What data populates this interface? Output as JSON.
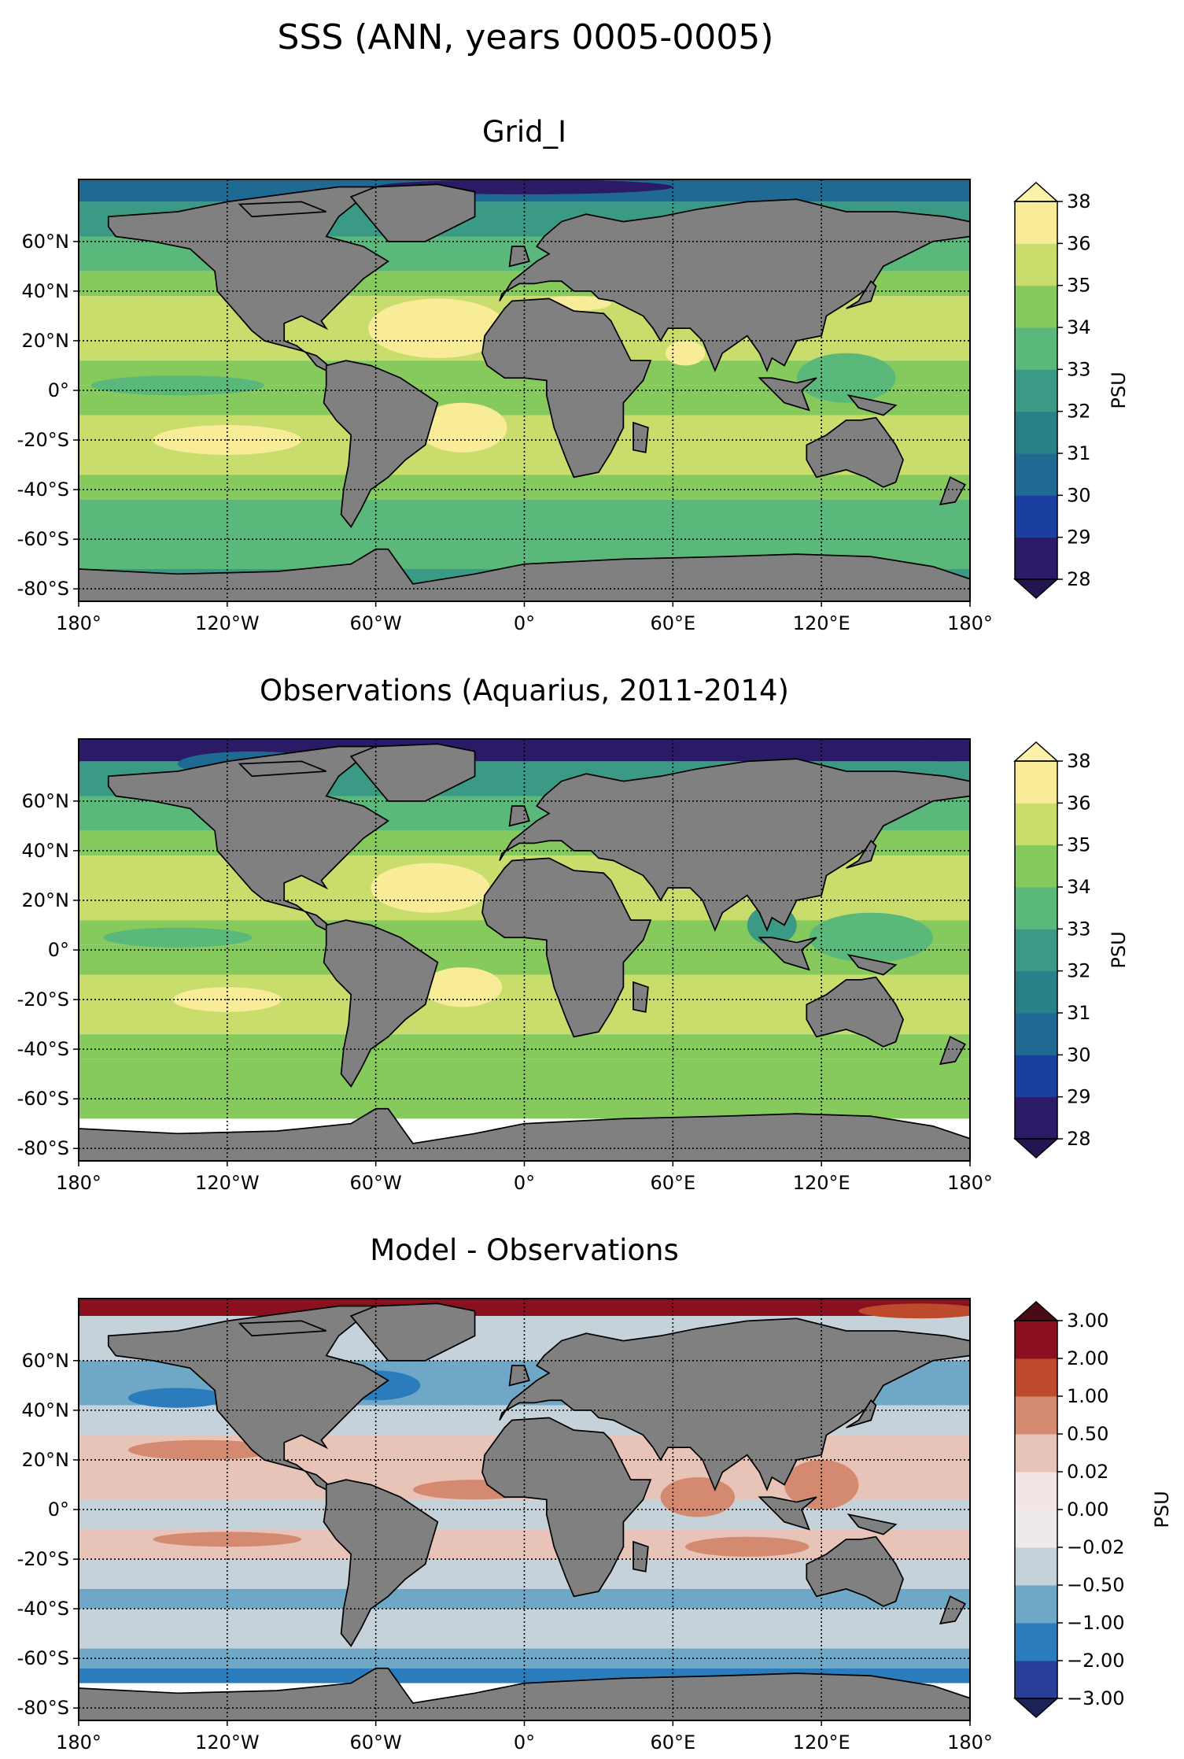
{
  "figure_title": "SSS (ANN, years 0005-0005)",
  "colors": {
    "land": "#808080",
    "frame": "#000000",
    "grid": "#000000"
  },
  "chart_data": [
    {
      "type": "heatmap",
      "title": "Grid_I",
      "xlabel": "",
      "ylabel": "",
      "xlim": [
        -180,
        180
      ],
      "ylim": [
        -85,
        85
      ],
      "grid": true,
      "x_ticks": [
        {
          "value": -180,
          "label": "180°"
        },
        {
          "value": -120,
          "label": "120°W"
        },
        {
          "value": -60,
          "label": "60°W"
        },
        {
          "value": 0,
          "label": "0°"
        },
        {
          "value": 60,
          "label": "60°E"
        },
        {
          "value": 120,
          "label": "120°E"
        },
        {
          "value": 180,
          "label": "180°"
        }
      ],
      "y_ticks": [
        {
          "value": 60,
          "label": "60°N"
        },
        {
          "value": 40,
          "label": "40°N"
        },
        {
          "value": 20,
          "label": "20°N"
        },
        {
          "value": 0,
          "label": "0°"
        },
        {
          "value": -20,
          "label": "-20°S"
        },
        {
          "value": -40,
          "label": "-40°S"
        },
        {
          "value": -60,
          "label": "-60°S"
        },
        {
          "value": -80,
          "label": "-80°S"
        }
      ],
      "colorbar": {
        "label": "PSU",
        "tick_labels": [
          "28",
          "29",
          "30",
          "31",
          "32",
          "33",
          "34",
          "35",
          "36",
          "38"
        ],
        "colors": [
          "#2b1a66",
          "#1b3fa0",
          "#1f6a93",
          "#2a8088",
          "#3a9a85",
          "#5ab87a",
          "#86c95d",
          "#c8dd6c",
          "#f8ec98"
        ],
        "extend_low": "#231452",
        "extend_high": "#fbf1a8"
      },
      "bands": [
        {
          "lat_max": 85,
          "lat_min": 76,
          "color": "#1f6a93"
        },
        {
          "lat_max": 76,
          "lat_min": 62,
          "color": "#3a9a85"
        },
        {
          "lat_max": 62,
          "lat_min": 48,
          "color": "#5ab87a"
        },
        {
          "lat_max": 48,
          "lat_min": 38,
          "color": "#86c95d"
        },
        {
          "lat_max": 38,
          "lat_min": 12,
          "color": "#c8dd6c"
        },
        {
          "lat_max": 12,
          "lat_min": 2,
          "color": "#86c95d"
        },
        {
          "lat_max": 2,
          "lat_min": -10,
          "color": "#86c95d"
        },
        {
          "lat_max": -10,
          "lat_min": -34,
          "color": "#c8dd6c"
        },
        {
          "lat_max": -34,
          "lat_min": -44,
          "color": "#86c95d"
        },
        {
          "lat_max": -44,
          "lat_min": -72,
          "color": "#5ab87a"
        },
        {
          "lat_max": -72,
          "lat_min": -85,
          "color": "#3a9a85"
        }
      ],
      "patches": [
        {
          "lon": -35,
          "lat": 25,
          "rx": 28,
          "ry": 12,
          "color": "#f8ec98"
        },
        {
          "lon": -25,
          "lat": -15,
          "rx": 18,
          "ry": 10,
          "color": "#f8ec98"
        },
        {
          "lon": -120,
          "lat": -20,
          "rx": 30,
          "ry": 6,
          "color": "#f8ec98"
        },
        {
          "lon": 65,
          "lat": 15,
          "rx": 8,
          "ry": 5,
          "color": "#f8ec98"
        },
        {
          "lon": 20,
          "lat": 35,
          "rx": 15,
          "ry": 3,
          "color": "#f8ec98"
        },
        {
          "lon": -140,
          "lat": 2,
          "rx": 35,
          "ry": 4,
          "color": "#5ab87a"
        },
        {
          "lon": 130,
          "lat": 5,
          "rx": 20,
          "ry": 10,
          "color": "#5ab87a"
        },
        {
          "lon": -100,
          "lat": 70,
          "rx": 25,
          "ry": 6,
          "color": "#1b3fa0"
        },
        {
          "lon": 0,
          "lat": 82,
          "rx": 60,
          "ry": 3,
          "color": "#2b1a66"
        }
      ]
    },
    {
      "type": "heatmap",
      "title": "Observations (Aquarius, 2011-2014)",
      "xlabel": "",
      "ylabel": "",
      "xlim": [
        -180,
        180
      ],
      "ylim": [
        -85,
        85
      ],
      "grid": true,
      "x_ticks": [
        {
          "value": -180,
          "label": "180°"
        },
        {
          "value": -120,
          "label": "120°W"
        },
        {
          "value": -60,
          "label": "60°W"
        },
        {
          "value": 0,
          "label": "0°"
        },
        {
          "value": 60,
          "label": "60°E"
        },
        {
          "value": 120,
          "label": "120°E"
        },
        {
          "value": 180,
          "label": "180°"
        }
      ],
      "y_ticks": [
        {
          "value": 60,
          "label": "60°N"
        },
        {
          "value": 40,
          "label": "40°N"
        },
        {
          "value": 20,
          "label": "20°N"
        },
        {
          "value": 0,
          "label": "0°"
        },
        {
          "value": -20,
          "label": "-20°S"
        },
        {
          "value": -40,
          "label": "-40°S"
        },
        {
          "value": -60,
          "label": "-60°S"
        },
        {
          "value": -80,
          "label": "-80°S"
        }
      ],
      "colorbar": {
        "label": "PSU",
        "tick_labels": [
          "28",
          "29",
          "30",
          "31",
          "32",
          "33",
          "34",
          "35",
          "36",
          "38"
        ],
        "colors": [
          "#2b1a66",
          "#1b3fa0",
          "#1f6a93",
          "#2a8088",
          "#3a9a85",
          "#5ab87a",
          "#86c95d",
          "#c8dd6c",
          "#f8ec98"
        ],
        "extend_low": "#231452",
        "extend_high": "#fbf1a8"
      },
      "bands": [
        {
          "lat_max": 85,
          "lat_min": 76,
          "color": "#2b1a66"
        },
        {
          "lat_max": 76,
          "lat_min": 62,
          "color": "#3a9a85"
        },
        {
          "lat_max": 62,
          "lat_min": 48,
          "color": "#5ab87a"
        },
        {
          "lat_max": 48,
          "lat_min": 38,
          "color": "#86c95d"
        },
        {
          "lat_max": 38,
          "lat_min": 12,
          "color": "#c8dd6c"
        },
        {
          "lat_max": 12,
          "lat_min": 2,
          "color": "#86c95d"
        },
        {
          "lat_max": 2,
          "lat_min": -10,
          "color": "#86c95d"
        },
        {
          "lat_max": -10,
          "lat_min": -34,
          "color": "#c8dd6c"
        },
        {
          "lat_max": -34,
          "lat_min": -44,
          "color": "#86c95d"
        },
        {
          "lat_max": -44,
          "lat_min": -68,
          "color": "#86c95d"
        },
        {
          "lat_max": -68,
          "lat_min": -85,
          "color": "#ffffff"
        }
      ],
      "patches": [
        {
          "lon": -38,
          "lat": 25,
          "rx": 24,
          "ry": 10,
          "color": "#f8ec98"
        },
        {
          "lon": -25,
          "lat": -15,
          "rx": 16,
          "ry": 8,
          "color": "#f8ec98"
        },
        {
          "lon": -120,
          "lat": -20,
          "rx": 22,
          "ry": 5,
          "color": "#f8ec98"
        },
        {
          "lon": -140,
          "lat": 5,
          "rx": 30,
          "ry": 4,
          "color": "#5ab87a"
        },
        {
          "lon": 140,
          "lat": 5,
          "rx": 25,
          "ry": 10,
          "color": "#5ab87a"
        },
        {
          "lon": 100,
          "lat": 10,
          "rx": 10,
          "ry": 8,
          "color": "#3a9a85"
        },
        {
          "lon": -110,
          "lat": 75,
          "rx": 30,
          "ry": 5,
          "color": "#1f6a93"
        },
        {
          "lon": 170,
          "lat": 80,
          "rx": 20,
          "ry": 4,
          "color": "#2b1a66"
        }
      ]
    },
    {
      "type": "heatmap",
      "title": "Model - Observations",
      "xlabel": "",
      "ylabel": "",
      "xlim": [
        -180,
        180
      ],
      "ylim": [
        -85,
        85
      ],
      "grid": true,
      "x_ticks": [
        {
          "value": -180,
          "label": "180°"
        },
        {
          "value": -120,
          "label": "120°W"
        },
        {
          "value": -60,
          "label": "60°W"
        },
        {
          "value": 0,
          "label": "0°"
        },
        {
          "value": 60,
          "label": "60°E"
        },
        {
          "value": 120,
          "label": "120°E"
        },
        {
          "value": 180,
          "label": "180°"
        }
      ],
      "y_ticks": [
        {
          "value": 60,
          "label": "60°N"
        },
        {
          "value": 40,
          "label": "40°N"
        },
        {
          "value": 20,
          "label": "20°N"
        },
        {
          "value": 0,
          "label": "0°"
        },
        {
          "value": -20,
          "label": "-20°S"
        },
        {
          "value": -40,
          "label": "-40°S"
        },
        {
          "value": -60,
          "label": "-60°S"
        },
        {
          "value": -80,
          "label": "-80°S"
        }
      ],
      "colorbar": {
        "label": "PSU",
        "tick_labels": [
          "−3.00",
          "−2.00",
          "−1.00",
          "−0.50",
          "−0.02",
          "0.00",
          "0.02",
          "0.50",
          "1.00",
          "2.00",
          "3.00"
        ],
        "colors": [
          "#2a3f9a",
          "#2b7cbc",
          "#6fa7c6",
          "#c6d2da",
          "#eeeaea",
          "#f2e6e4",
          "#e8c3b8",
          "#d48a70",
          "#bd4a2c",
          "#8a1020"
        ],
        "extend_low": "#1a2258",
        "extend_high": "#4a0c14"
      },
      "bands": [
        {
          "lat_max": 85,
          "lat_min": 78,
          "color": "#8a1020"
        },
        {
          "lat_max": 78,
          "lat_min": 60,
          "color": "#c6d2da"
        },
        {
          "lat_max": 60,
          "lat_min": 42,
          "color": "#6fa7c6"
        },
        {
          "lat_max": 42,
          "lat_min": 30,
          "color": "#c6d2da"
        },
        {
          "lat_max": 30,
          "lat_min": 14,
          "color": "#e8c3b8"
        },
        {
          "lat_max": 14,
          "lat_min": 4,
          "color": "#e8c3b8"
        },
        {
          "lat_max": 4,
          "lat_min": -8,
          "color": "#c6d2da"
        },
        {
          "lat_max": -8,
          "lat_min": -20,
          "color": "#e8c3b8"
        },
        {
          "lat_max": -20,
          "lat_min": -32,
          "color": "#c6d2da"
        },
        {
          "lat_max": -32,
          "lat_min": -40,
          "color": "#6fa7c6"
        },
        {
          "lat_max": -40,
          "lat_min": -56,
          "color": "#c6d2da"
        },
        {
          "lat_max": -56,
          "lat_min": -64,
          "color": "#6fa7c6"
        },
        {
          "lat_max": -64,
          "lat_min": -70,
          "color": "#2b7cbc"
        },
        {
          "lat_max": -70,
          "lat_min": -85,
          "color": "#ffffff"
        }
      ],
      "patches": [
        {
          "lon": -130,
          "lat": 24,
          "rx": 30,
          "ry": 4,
          "color": "#d48a70"
        },
        {
          "lon": -20,
          "lat": 8,
          "rx": 25,
          "ry": 4,
          "color": "#d48a70"
        },
        {
          "lon": -120,
          "lat": -12,
          "rx": 30,
          "ry": 3,
          "color": "#d48a70"
        },
        {
          "lon": 70,
          "lat": 5,
          "rx": 15,
          "ry": 8,
          "color": "#d48a70"
        },
        {
          "lon": 120,
          "lat": 10,
          "rx": 15,
          "ry": 10,
          "color": "#d48a70"
        },
        {
          "lon": 90,
          "lat": -15,
          "rx": 25,
          "ry": 4,
          "color": "#d48a70"
        },
        {
          "lon": -60,
          "lat": 50,
          "rx": 18,
          "ry": 6,
          "color": "#2b7cbc"
        },
        {
          "lon": -140,
          "lat": 45,
          "rx": 20,
          "ry": 4,
          "color": "#2b7cbc"
        },
        {
          "lon": 160,
          "lat": 80,
          "rx": 25,
          "ry": 3,
          "color": "#bd4a2c"
        }
      ]
    }
  ]
}
